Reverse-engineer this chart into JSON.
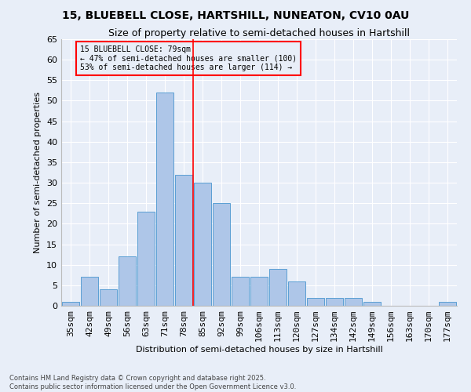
{
  "title": "15, BLUEBELL CLOSE, HARTSHILL, NUNEATON, CV10 0AU",
  "subtitle": "Size of property relative to semi-detached houses in Hartshill",
  "xlabel": "Distribution of semi-detached houses by size in Hartshill",
  "ylabel": "Number of semi-detached properties",
  "categories": [
    "35sqm",
    "42sqm",
    "49sqm",
    "56sqm",
    "63sqm",
    "71sqm",
    "78sqm",
    "85sqm",
    "92sqm",
    "99sqm",
    "106sqm",
    "113sqm",
    "120sqm",
    "127sqm",
    "134sqm",
    "142sqm",
    "149sqm",
    "156sqm",
    "163sqm",
    "170sqm",
    "177sqm"
  ],
  "values": [
    1,
    7,
    4,
    12,
    23,
    52,
    32,
    30,
    25,
    7,
    7,
    9,
    6,
    2,
    2,
    2,
    1,
    0,
    0,
    0,
    1
  ],
  "bar_color": "#aec6e8",
  "bar_edge_color": "#5a9fd4",
  "vline_color": "red",
  "vline_x_index": 6.5,
  "annotation_title": "15 BLUEBELL CLOSE: 79sqm",
  "annotation_line1": "← 47% of semi-detached houses are smaller (100)",
  "annotation_line2": "53% of semi-detached houses are larger (114) →",
  "annotation_box_color": "red",
  "ylim": [
    0,
    65
  ],
  "yticks": [
    0,
    5,
    10,
    15,
    20,
    25,
    30,
    35,
    40,
    45,
    50,
    55,
    60,
    65
  ],
  "background_color": "#e8eef8",
  "grid_color": "#ffffff",
  "footer_line1": "Contains HM Land Registry data © Crown copyright and database right 2025.",
  "footer_line2": "Contains public sector information licensed under the Open Government Licence v3.0."
}
